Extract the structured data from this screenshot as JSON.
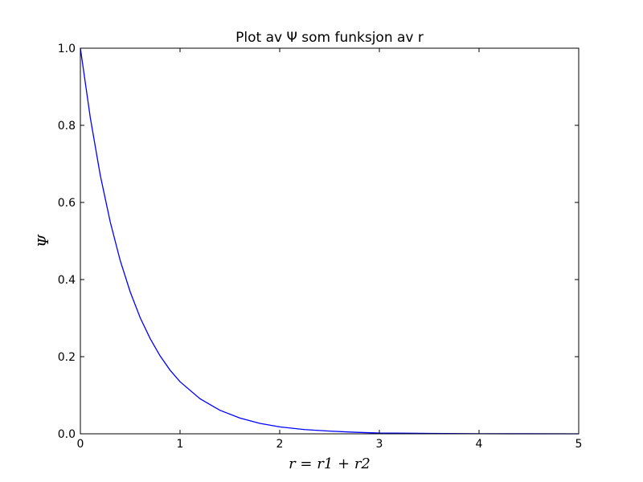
{
  "chart_data": {
    "type": "line",
    "title": "Plot av Ψ som funksjon av r",
    "xlabel": "r = r1 + r2",
    "ylabel": "Ψ",
    "xlim": [
      0,
      5
    ],
    "ylim": [
      0.0,
      1.0
    ],
    "x_ticks": [
      "0",
      "1",
      "2",
      "3",
      "4",
      "5"
    ],
    "y_ticks": [
      "0.0",
      "0.2",
      "0.4",
      "0.6",
      "0.8",
      "1.0"
    ],
    "grid": false,
    "series": [
      {
        "color": "#0000ff",
        "x": [
          0,
          0.1,
          0.2,
          0.3,
          0.4,
          0.5,
          0.6,
          0.7,
          0.8,
          0.9,
          1.0,
          1.2,
          1.4,
          1.6,
          1.8,
          2.0,
          2.25,
          2.5,
          2.75,
          3.0,
          3.5,
          4.0,
          4.5,
          5.0
        ],
        "y": [
          1.0,
          0.819,
          0.67,
          0.549,
          0.449,
          0.368,
          0.301,
          0.247,
          0.202,
          0.165,
          0.135,
          0.091,
          0.061,
          0.041,
          0.027,
          0.018,
          0.011,
          0.007,
          0.004,
          0.002,
          0.001,
          0.0003,
          0.0001,
          0.0
        ]
      }
    ]
  }
}
